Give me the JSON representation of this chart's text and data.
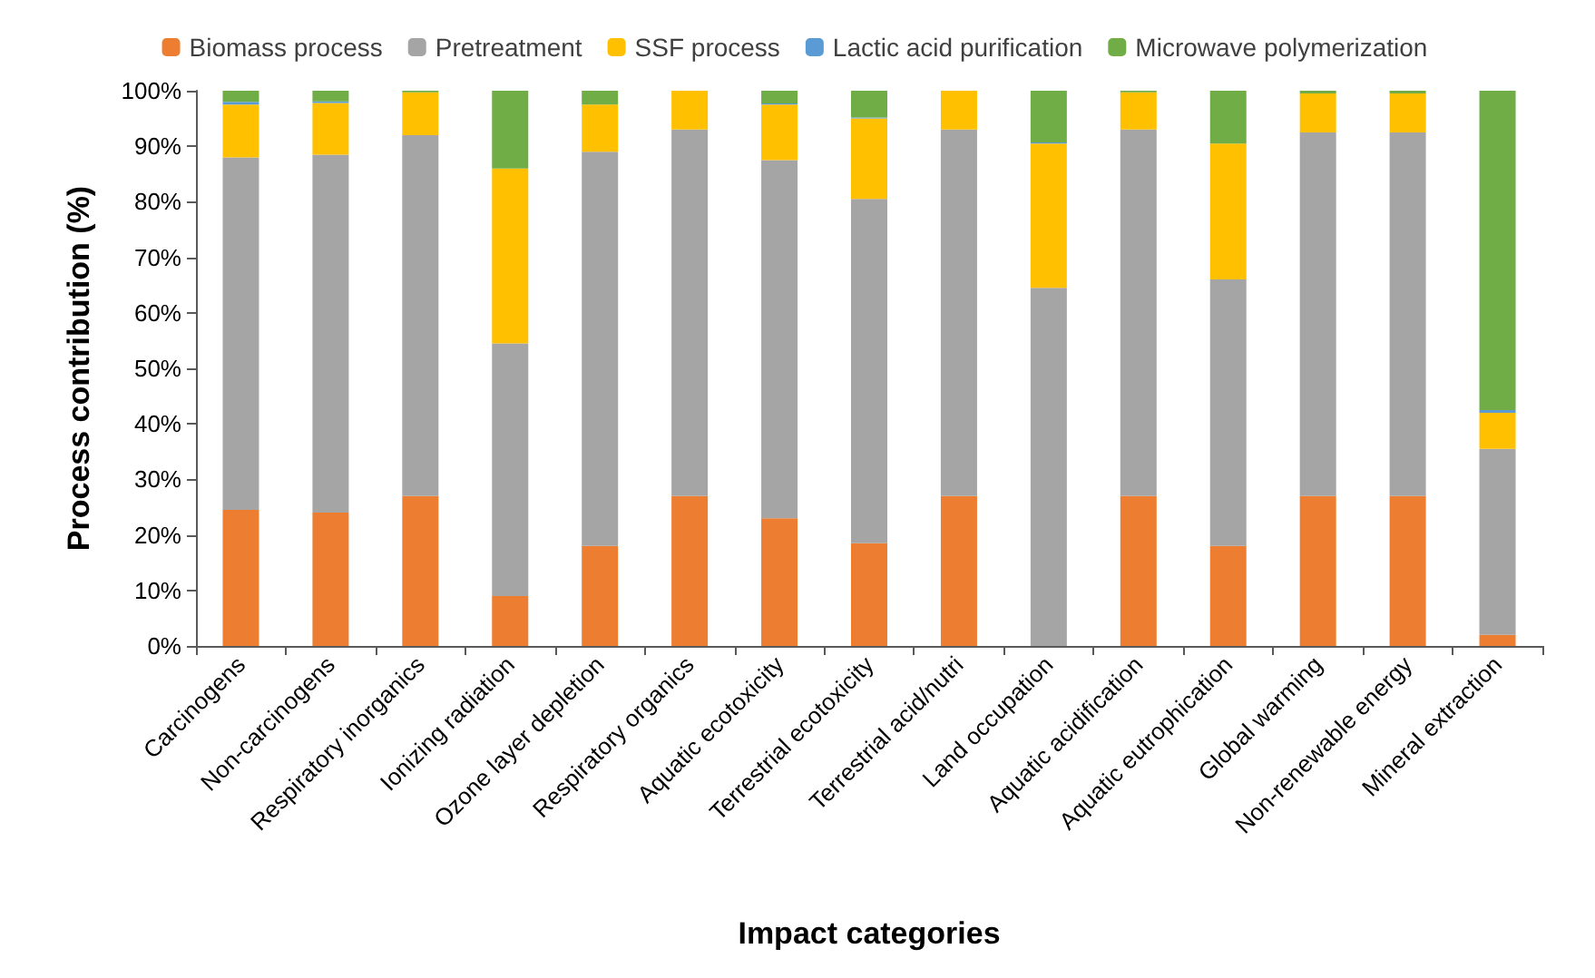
{
  "chart_data": {
    "type": "bar",
    "stacked": true,
    "xlabel": "Impact categories",
    "ylabel": "Process contribution (%)",
    "categories": [
      "Carcinogens",
      "Non-carcinogens",
      "Respiratory inorganics",
      "Ionizing radiation",
      "Ozone layer depletion",
      "Respiratory organics",
      "Aquatic ecotoxicity",
      "Terrestrial ecotoxicity",
      "Terrestrial acid/nutri",
      "Land occupation",
      "Aquatic acidification",
      "Aquatic eutrophication",
      "Global warming",
      "Non-renewable energy",
      "Mineral extraction"
    ],
    "series": [
      {
        "name": "Biomass process",
        "color": "#ed7d31",
        "values": [
          24.5,
          24,
          27,
          9,
          18,
          27,
          23,
          18.5,
          27,
          0,
          27,
          18,
          27,
          27,
          2
        ]
      },
      {
        "name": "Pretreatment",
        "color": "#a5a5a5",
        "values": [
          63.5,
          64.5,
          65,
          45.5,
          71,
          66,
          64.5,
          62,
          66,
          64.5,
          66,
          48,
          65.5,
          65.5,
          33.5
        ]
      },
      {
        "name": "SSF process",
        "color": "#ffc000",
        "values": [
          9.5,
          9.3,
          7.7,
          31.5,
          8.5,
          7,
          10,
          14.5,
          7,
          26,
          6.7,
          24.5,
          7,
          7,
          6.5
        ]
      },
      {
        "name": "Lactic acid purification",
        "color": "#5b9bd5",
        "values": [
          0.5,
          0.3,
          0,
          0,
          0,
          0,
          0.2,
          0.2,
          0,
          0.2,
          0,
          0,
          0,
          0,
          0.5
        ]
      },
      {
        "name": "Microwave polymerization",
        "color": "#70ad47",
        "values": [
          2,
          1.9,
          0.3,
          14,
          2.5,
          0,
          2.3,
          4.8,
          0,
          9.3,
          0.3,
          9.5,
          0.5,
          0.5,
          57.5
        ]
      }
    ],
    "ylim": [
      0,
      100
    ],
    "yticks": [
      {
        "value": 0,
        "label": "0%"
      },
      {
        "value": 10,
        "label": "10%"
      },
      {
        "value": 20,
        "label": "20%"
      },
      {
        "value": 30,
        "label": "30%"
      },
      {
        "value": 40,
        "label": "40%"
      },
      {
        "value": 50,
        "label": "50%"
      },
      {
        "value": 60,
        "label": "60%"
      },
      {
        "value": 70,
        "label": "70%"
      },
      {
        "value": 80,
        "label": "80%"
      },
      {
        "value": 90,
        "label": "90%"
      },
      {
        "value": 100,
        "label": "100%"
      }
    ],
    "grid": false,
    "legend": "top"
  }
}
